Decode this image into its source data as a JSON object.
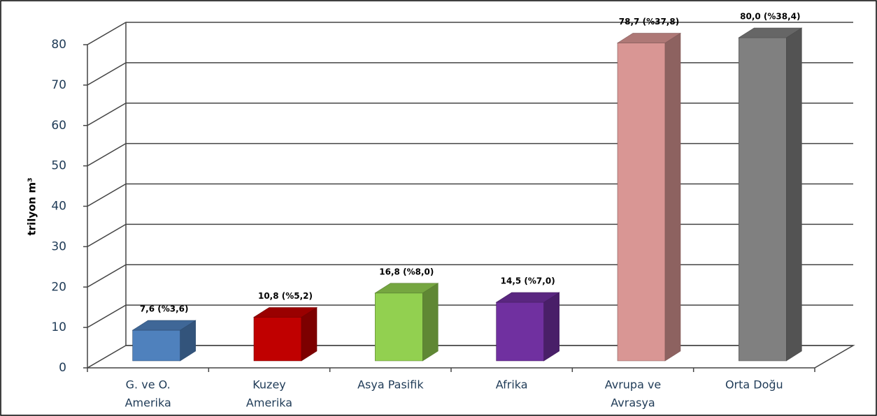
{
  "chart_data": {
    "type": "bar3d",
    "y_label": "trilyon m³",
    "categories": [
      [
        "G. ve O.",
        "Amerika"
      ],
      [
        "Kuzey",
        "Amerika"
      ],
      [
        "Asya Pasifik"
      ],
      [
        "Afrika"
      ],
      [
        "Avrupa ve",
        "Avrasya"
      ],
      [
        "Orta Doğu"
      ]
    ],
    "values": [
      7.6,
      10.8,
      16.8,
      14.5,
      78.7,
      80.0
    ],
    "value_labels": [
      "7,6 (%3,6)",
      "10,8 (%5,2)",
      "16,8 (%8,0)",
      "14,5 (%7,0)",
      "78,7 (%37,8)",
      "80,0 (%38,4)"
    ],
    "colors": [
      "#4f81bd",
      "#c00000",
      "#92d050",
      "#7030a0",
      "#d99694",
      "#808080"
    ],
    "ylim": [
      0,
      80
    ],
    "yticks": [
      0,
      10,
      20,
      30,
      40,
      50,
      60,
      70,
      80
    ],
    "grid": true
  }
}
